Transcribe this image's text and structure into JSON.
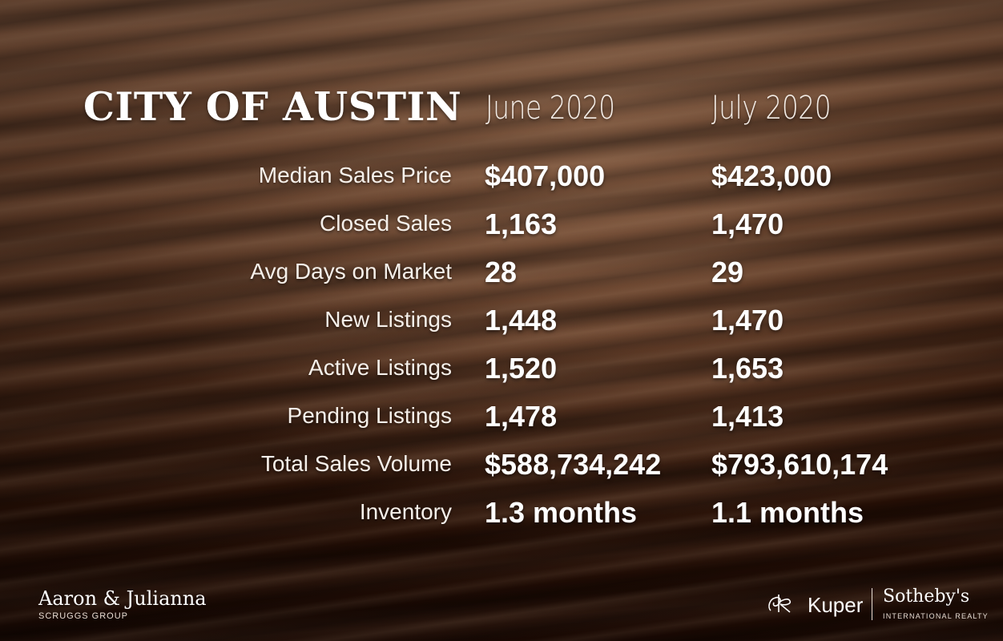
{
  "title": "CITY OF AUSTIN",
  "columns": {
    "june": "June 2020",
    "july": "July 2020"
  },
  "rows": [
    {
      "label": "Median Sales Price",
      "june": "$407,000",
      "july": "$423,000"
    },
    {
      "label": "Closed Sales",
      "june": "1,163",
      "july": "1,470"
    },
    {
      "label": "Avg Days on Market",
      "june": "28",
      "july": "29"
    },
    {
      "label": "New Listings",
      "june": "1,448",
      "july": "1,470"
    },
    {
      "label": "Active Listings",
      "june": "1,520",
      "july": "1,653"
    },
    {
      "label": "Pending Listings",
      "june": "1,478",
      "july": "1,413"
    },
    {
      "label": "Total Sales Volume",
      "june": "$588,734,242",
      "july": "$793,610,174"
    },
    {
      "label": "Inventory",
      "june": "1.3 months",
      "july": "1.1 months"
    }
  ],
  "brand_left": {
    "name": "Aaron & Julianna",
    "sub": "SCRUGGS GROUP"
  },
  "brand_right": {
    "kuper": "Kuper",
    "sothebys": "Sotheby's",
    "intl": "INTERNATIONAL REALTY",
    "logo_icon": "kuper-monogram-icon"
  },
  "colors": {
    "background": "#4a2614",
    "text": "#ffffff"
  }
}
